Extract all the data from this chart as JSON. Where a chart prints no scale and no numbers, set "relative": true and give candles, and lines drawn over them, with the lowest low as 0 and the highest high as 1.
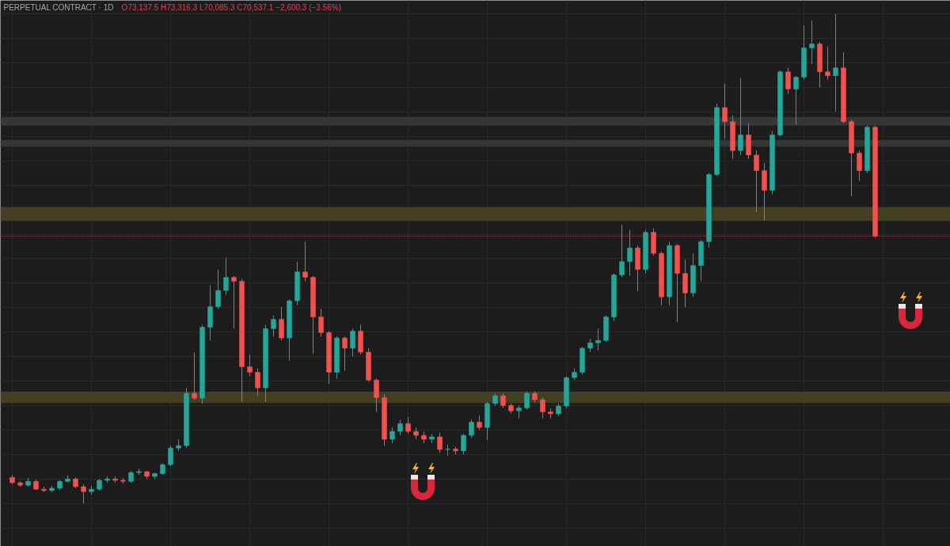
{
  "chart_data": {
    "type": "candlestick",
    "title": "PERPETUAL CONTRACT · 1D",
    "subtitle": "O73,137.5 H73,316.3 L70,085.3 C70,537.1 −2,600.3 (−3.56%)",
    "relative": true,
    "grid": true,
    "tick_labels": false,
    "categories": [
      null,
      null,
      null,
      null,
      null,
      null,
      null,
      null,
      null,
      null,
      null,
      null,
      null,
      null,
      null,
      null,
      null,
      null,
      null,
      null,
      null,
      null,
      null,
      null,
      null,
      null,
      null,
      null,
      null,
      null,
      null,
      null,
      null,
      null,
      null,
      null,
      null,
      null,
      null,
      null,
      null,
      null,
      null,
      null,
      null,
      null,
      null,
      null,
      null,
      null,
      null,
      null,
      null,
      null,
      null,
      null,
      null,
      null,
      null,
      null,
      null,
      null,
      null,
      null,
      null,
      null,
      null,
      null,
      null,
      null,
      null,
      null,
      null,
      null,
      null,
      null,
      null,
      null,
      null,
      null,
      null,
      null,
      null,
      null,
      null,
      null,
      null,
      null,
      null,
      null,
      null,
      null,
      null,
      null,
      null,
      null,
      null,
      null,
      null,
      null,
      null,
      null,
      null,
      null,
      null,
      null,
      null,
      null,
      null,
      null
    ],
    "ohlc": [
      [
        0.053,
        0.058,
        0.039,
        0.042
      ],
      [
        0.042,
        0.045,
        0.034,
        0.037
      ],
      [
        0.037,
        0.052,
        0.034,
        0.045
      ],
      [
        0.045,
        0.048,
        0.027,
        0.029
      ],
      [
        0.029,
        0.034,
        0.023,
        0.026
      ],
      [
        0.026,
        0.036,
        0.023,
        0.031
      ],
      [
        0.031,
        0.048,
        0.027,
        0.045
      ],
      [
        0.045,
        0.057,
        0.042,
        0.05
      ],
      [
        0.05,
        0.053,
        0.031,
        0.034
      ],
      [
        0.034,
        0.039,
        0,
        0.024
      ],
      [
        0.024,
        0.036,
        0.018,
        0.029
      ],
      [
        0.029,
        0.05,
        0.026,
        0.047
      ],
      [
        0.047,
        0.055,
        0.042,
        0.05
      ],
      [
        0.05,
        0.055,
        0.042,
        0.047
      ],
      [
        0.047,
        0.052,
        0.04,
        0.045
      ],
      [
        0.045,
        0.066,
        0.042,
        0.063
      ],
      [
        0.063,
        0.071,
        0.058,
        0.065
      ],
      [
        0.065,
        0.066,
        0.05,
        0.055
      ],
      [
        0.055,
        0.063,
        0.05,
        0.061
      ],
      [
        0.061,
        0.082,
        0.058,
        0.079
      ],
      [
        0.079,
        0.118,
        0.076,
        0.113
      ],
      [
        0.113,
        0.131,
        0.107,
        0.118
      ],
      [
        0.118,
        0.236,
        0.113,
        0.225
      ],
      [
        0.225,
        0.309,
        0.212,
        0.215
      ],
      [
        0.215,
        0.365,
        0.204,
        0.36
      ],
      [
        0.36,
        0.446,
        0.333,
        0.402
      ],
      [
        0.402,
        0.478,
        0.397,
        0.435
      ],
      [
        0.435,
        0.502,
        0.426,
        0.462
      ],
      [
        0.462,
        0.465,
        0.357,
        0.454
      ],
      [
        0.454,
        0.459,
        0.208,
        0.279
      ],
      [
        0.279,
        0.304,
        0.26,
        0.268
      ],
      [
        0.268,
        0.276,
        0.22,
        0.236
      ],
      [
        0.236,
        0.365,
        0.207,
        0.357
      ],
      [
        0.357,
        0.384,
        0.341,
        0.376
      ],
      [
        0.376,
        0.401,
        0.333,
        0.338
      ],
      [
        0.338,
        0.417,
        0.292,
        0.414
      ],
      [
        0.414,
        0.494,
        0.405,
        0.473
      ],
      [
        0.473,
        0.535,
        0.454,
        0.462
      ],
      [
        0.462,
        0.465,
        0.305,
        0.381
      ],
      [
        0.381,
        0.397,
        0.341,
        0.349
      ],
      [
        0.349,
        0.352,
        0.244,
        0.268
      ],
      [
        0.268,
        0.341,
        0.255,
        0.338
      ],
      [
        0.338,
        0.341,
        0.271,
        0.317
      ],
      [
        0.317,
        0.357,
        0.3,
        0.352
      ],
      [
        0.352,
        0.365,
        0.304,
        0.309
      ],
      [
        0.309,
        0.317,
        0.249,
        0.252
      ],
      [
        0.252,
        0.255,
        0.187,
        0.216
      ],
      [
        0.216,
        0.223,
        0.118,
        0.131
      ],
      [
        0.131,
        0.155,
        0.123,
        0.147
      ],
      [
        0.147,
        0.171,
        0.139,
        0.163
      ],
      [
        0.163,
        0.176,
        0.142,
        0.147
      ],
      [
        0.147,
        0.155,
        0.131,
        0.139
      ],
      [
        0.139,
        0.147,
        0.123,
        0.131
      ],
      [
        0.131,
        0.142,
        0.123,
        0.136
      ],
      [
        0.136,
        0.144,
        0.103,
        0.11
      ],
      [
        0.11,
        0.12,
        0.097,
        0.111
      ],
      [
        0.111,
        0.116,
        0.1,
        0.107
      ],
      [
        0.107,
        0.142,
        0.1,
        0.139
      ],
      [
        0.139,
        0.171,
        0.134,
        0.166
      ],
      [
        0.166,
        0.179,
        0.15,
        0.155
      ],
      [
        0.155,
        0.207,
        0.129,
        0.204
      ],
      [
        0.204,
        0.225,
        0.199,
        0.22
      ],
      [
        0.22,
        0.225,
        0.195,
        0.2
      ],
      [
        0.2,
        0.204,
        0.183,
        0.189
      ],
      [
        0.189,
        0.2,
        0.174,
        0.195
      ],
      [
        0.195,
        0.229,
        0.191,
        0.225
      ],
      [
        0.225,
        0.229,
        0.207,
        0.212
      ],
      [
        0.212,
        0.216,
        0.174,
        0.187
      ],
      [
        0.187,
        0.194,
        0.174,
        0.183
      ],
      [
        0.183,
        0.204,
        0.178,
        0.199
      ],
      [
        0.199,
        0.26,
        0.194,
        0.257
      ],
      [
        0.257,
        0.276,
        0.252,
        0.268
      ],
      [
        0.268,
        0.32,
        0.263,
        0.317
      ],
      [
        0.317,
        0.336,
        0.309,
        0.328
      ],
      [
        0.328,
        0.357,
        0.313,
        0.333
      ],
      [
        0.333,
        0.384,
        0.33,
        0.381
      ],
      [
        0.381,
        0.47,
        0.373,
        0.467
      ],
      [
        0.467,
        0.57,
        0.462,
        0.494
      ],
      [
        0.494,
        0.559,
        0.465,
        0.522
      ],
      [
        0.522,
        0.527,
        0.433,
        0.478
      ],
      [
        0.478,
        0.559,
        0.47,
        0.554
      ],
      [
        0.554,
        0.562,
        0.506,
        0.511
      ],
      [
        0.511,
        0.514,
        0.405,
        0.422
      ],
      [
        0.422,
        0.535,
        0.405,
        0.527
      ],
      [
        0.527,
        0.53,
        0.37,
        0.47
      ],
      [
        0.47,
        0.498,
        0.401,
        0.43
      ],
      [
        0.43,
        0.511,
        0.422,
        0.486
      ],
      [
        0.486,
        0.538,
        0.454,
        0.535
      ],
      [
        0.535,
        0.675,
        0.523,
        0.672
      ],
      [
        0.672,
        0.817,
        0.669,
        0.809
      ],
      [
        0.809,
        0.858,
        0.745,
        0.78
      ],
      [
        0.78,
        0.793,
        0.704,
        0.721
      ],
      [
        0.721,
        0.869,
        0.712,
        0.753
      ],
      [
        0.753,
        0.777,
        0.704,
        0.712
      ],
      [
        0.712,
        0.721,
        0.596,
        0.68
      ],
      [
        0.68,
        0.696,
        0.578,
        0.64
      ],
      [
        0.64,
        0.761,
        0.632,
        0.753
      ],
      [
        0.753,
        0.885,
        0.75,
        0.882
      ],
      [
        0.882,
        0.89,
        0.837,
        0.847
      ],
      [
        0.847,
        0.874,
        0.774,
        0.871
      ],
      [
        0.871,
        0.977,
        0.866,
        0.931
      ],
      [
        0.931,
        0.987,
        0.898,
        0.939
      ],
      [
        0.939,
        0.943,
        0.85,
        0.882
      ],
      [
        0.882,
        0.934,
        0.866,
        0.874
      ],
      [
        0.874,
        1,
        0.801,
        0.89
      ],
      [
        0.89,
        0.922,
        0.777,
        0.78
      ],
      [
        0.78,
        0.785,
        0.628,
        0.716
      ],
      [
        0.716,
        0.721,
        0.659,
        0.68
      ],
      [
        0.68,
        0.772,
        0.675,
        0.769
      ],
      [
        0.769,
        0.772,
        0.543,
        0.546
      ]
    ],
    "colors": [
      "#ef5350",
      "#ef5350",
      "#26a69a",
      "#ef5350",
      "#ef5350",
      "#26a69a",
      "#26a69a",
      "#26a69a",
      "#ef5350",
      "#ef5350",
      "#26a69a",
      "#26a69a",
      "#26a69a",
      "#ef5350",
      "#ef5350",
      "#26a69a",
      "#26a69a",
      "#ef5350",
      "#26a69a",
      "#26a69a",
      "#26a69a",
      "#26a69a",
      "#26a69a",
      "#ef5350",
      "#26a69a",
      "#26a69a",
      "#26a69a",
      "#26a69a",
      "#ef5350",
      "#ef5350",
      "#ef5350",
      "#ef5350",
      "#26a69a",
      "#26a69a",
      "#ef5350",
      "#26a69a",
      "#26a69a",
      "#ef5350",
      "#ef5350",
      "#ef5350",
      "#ef5350",
      "#26a69a",
      "#ef5350",
      "#26a69a",
      "#ef5350",
      "#ef5350",
      "#ef5350",
      "#ef5350",
      "#26a69a",
      "#26a69a",
      "#ef5350",
      "#ef5350",
      "#ef5350",
      "#26a69a",
      "#ef5350",
      "#26a69a",
      "#ef5350",
      "#26a69a",
      "#26a69a",
      "#ef5350",
      "#26a69a",
      "#26a69a",
      "#ef5350",
      "#ef5350",
      "#26a69a",
      "#26a69a",
      "#ef5350",
      "#ef5350",
      "#ef5350",
      "#26a69a",
      "#26a69a",
      "#26a69a",
      "#26a69a",
      "#26a69a",
      "#26a69a",
      "#26a69a",
      "#26a69a",
      "#26a69a",
      "#26a69a",
      "#ef5350",
      "#26a69a",
      "#ef5350",
      "#ef5350",
      "#26a69a",
      "#ef5350",
      "#ef5350",
      "#26a69a",
      "#26a69a",
      "#26a69a",
      "#26a69a",
      "#ef5350",
      "#ef5350",
      "#26a69a",
      "#ef5350",
      "#ef5350",
      "#ef5350",
      "#26a69a",
      "#26a69a",
      "#ef5350",
      "#26a69a",
      "#26a69a",
      "#26a69a",
      "#ef5350",
      "#ef5350",
      "#26a69a",
      "#ef5350",
      "#ef5350",
      "#ef5350",
      "#26a69a",
      "#ef5350"
    ],
    "ref_lines": [
      {
        "axis": "y",
        "value": 0.546,
        "color": "#f23645",
        "line_style": "dotted"
      }
    ],
    "bands": [
      {
        "axis": "y",
        "from": 0.205,
        "to": 0.228,
        "color": "#433f22"
      },
      {
        "axis": "y",
        "from": 0.577,
        "to": 0.606,
        "color": "#433f22"
      },
      {
        "axis": "y",
        "from": 0.772,
        "to": 0.79,
        "color": "#353638"
      },
      {
        "axis": "y",
        "from": 0.729,
        "to": 0.743,
        "color": "#353638"
      }
    ]
  }
}
